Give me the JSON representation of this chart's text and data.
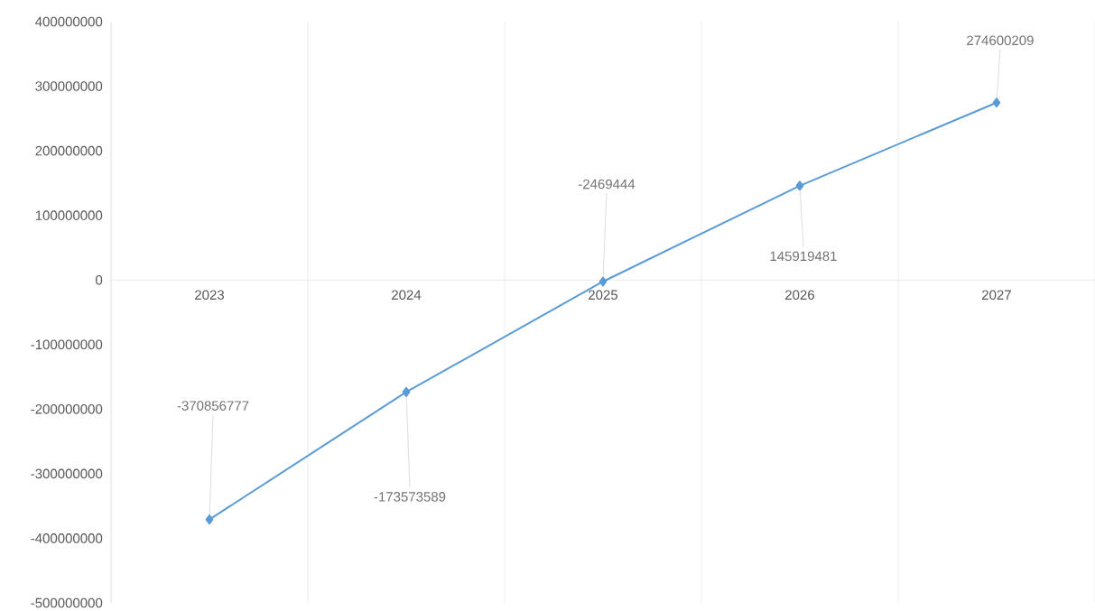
{
  "chart_data": {
    "type": "line",
    "categories": [
      "2023",
      "2024",
      "2025",
      "2026",
      "2027"
    ],
    "values": [
      -370856777,
      -173573589,
      -2469444,
      145919481,
      274600209
    ],
    "value_labels": [
      "-370856777",
      "-173573589",
      "-2469444",
      "145919481",
      "274600209"
    ],
    "color": "#5b9bd5",
    "marker": "diamond",
    "grid": "x",
    "ylim": [
      -500000000,
      400000000
    ],
    "yticks": [
      -500000000,
      -400000000,
      -300000000,
      -200000000,
      -100000000,
      0,
      100000000,
      200000000,
      300000000,
      400000000
    ]
  }
}
